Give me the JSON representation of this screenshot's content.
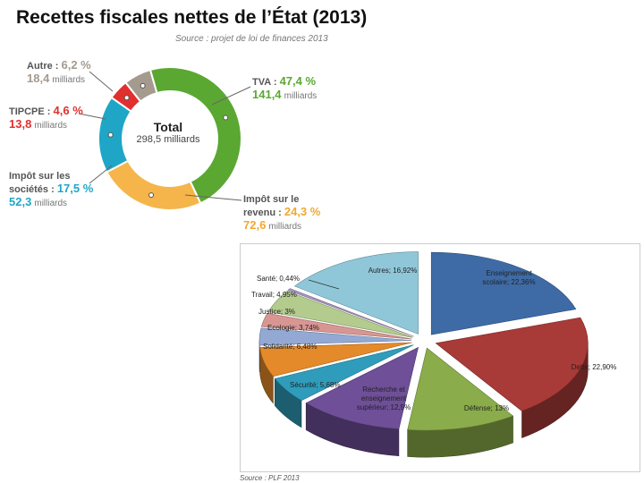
{
  "header": {
    "title": "Recettes fiscales nettes de l’État (2013)",
    "source": "Source : projet de loi de finances 2013"
  },
  "donut": {
    "center_title": "Total",
    "center_value": "298,5 milliards",
    "unit": "milliards",
    "labels": {
      "tva_name": "TVA : ",
      "tva_pct": "47,4 %",
      "tva_val": "141,4",
      "ir_name1": "Impôt sur le",
      "ir_name2": "revenu : ",
      "ir_pct": "24,3 %",
      "ir_val": "72,6",
      "is_name1": "Impôt sur les",
      "is_name2": "sociétés : ",
      "is_pct": "17,5 %",
      "is_val": "52,3",
      "tipcpe_name": "TIPCPE : ",
      "tipcpe_pct": "4,6 %",
      "tipcpe_val": "13,8",
      "autre_name": "Autre : ",
      "autre_pct": "6,2 %",
      "autre_val": "18,4"
    }
  },
  "chart_data": [
    {
      "type": "pie",
      "title": "Recettes fiscales nettes de l’État (2013)",
      "subtitle": "Source : projet de loi de finances 2013",
      "total": "298,5 milliards",
      "categories": [
        "TVA",
        "Impôt sur le revenu",
        "Impôt sur les sociétés",
        "TIPCPE",
        "Autre"
      ],
      "values": [
        47.4,
        24.3,
        17.5,
        4.6,
        6.2
      ],
      "amounts_milliards": [
        141.4,
        72.6,
        52.3,
        13.8,
        18.4
      ],
      "colors": [
        "#5aa832",
        "#f5b54a",
        "#1fa6c6",
        "#e0302e",
        "#a59a8e"
      ]
    },
    {
      "type": "pie",
      "subtitle": "Source : PLF 2013",
      "labels": [
        "Enseignement scolaire; 22,36%",
        "Dette; 22,90%",
        "Défense; 13%",
        "Recherche et enseignement supérieur; 12,5%",
        "Sécurité; 5,68%",
        "Solidarité; 6,48%",
        "Ecologie; 3,74%",
        "Justice; 3%",
        "Travail; 4,95%",
        "Santé; 0,44%",
        "Autres; 16,92%"
      ],
      "values": [
        22.36,
        22.9,
        13,
        12.5,
        5.68,
        6.48,
        3.74,
        3,
        4.95,
        0.44,
        16.92
      ],
      "colors": [
        "#3e6ba6",
        "#a83a37",
        "#8aac4a",
        "#6e4f98",
        "#2f9cbb",
        "#e48a2a",
        "#93a9d4",
        "#d89693",
        "#b4cb8e",
        "#a798c0",
        "#8fc7d9"
      ]
    }
  ]
}
